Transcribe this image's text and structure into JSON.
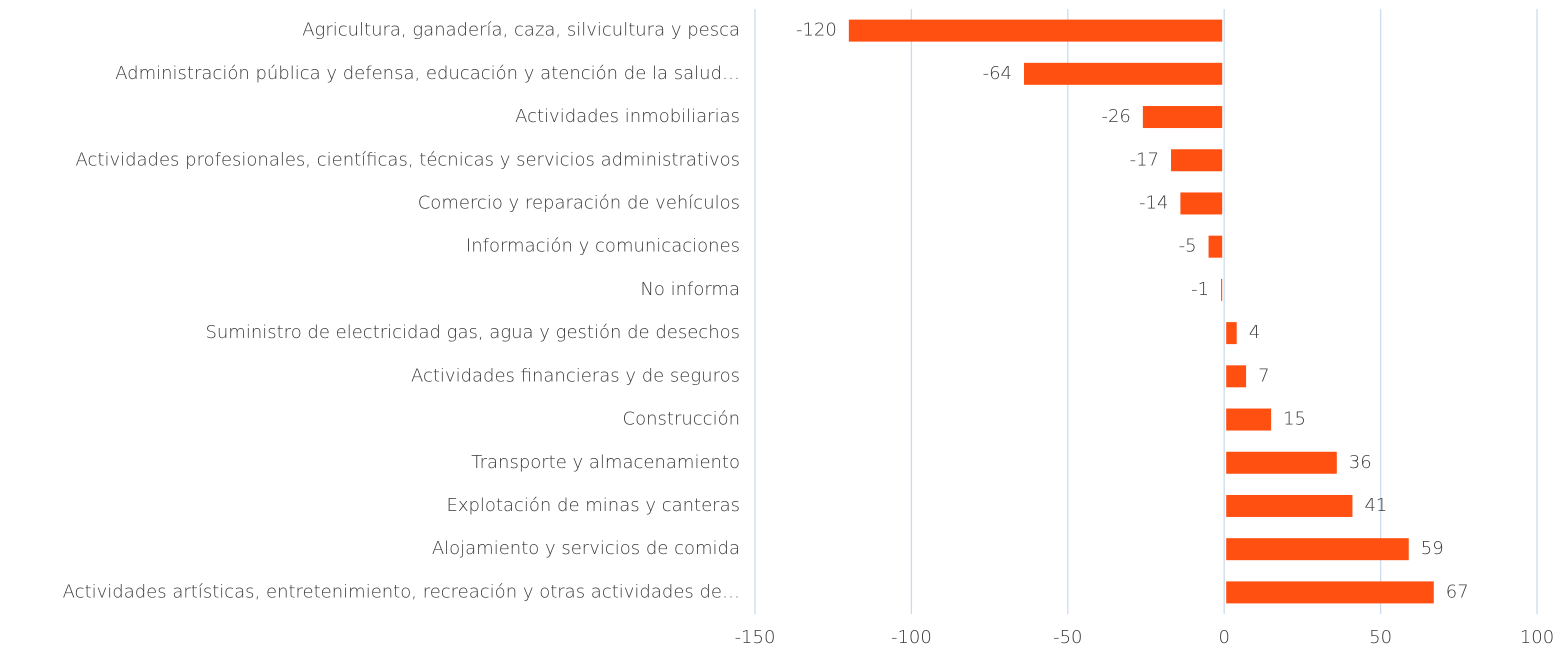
{
  "chart_data": {
    "type": "bar",
    "orientation": "horizontal",
    "categories": [
      "Agricultura, ganadería, caza, silvicultura y pesca",
      "Administración pública y defensa, educación y atención de la salud…",
      "Actividades inmobiliarias",
      "Actividades profesionales, científicas, técnicas y servicios administrativos",
      "Comercio y reparación de vehículos",
      "Información y comunicaciones",
      "No informa",
      "Suministro de electricidad gas, agua y gestión de desechos",
      "Actividades financieras y de seguros",
      "Construcción",
      "Transporte y almacenamiento",
      "Explotación de minas y canteras",
      "Alojamiento y servicios de comida",
      "Actividades artísticas, entretenimiento, recreación y otras actividades de…"
    ],
    "values": [
      -120,
      -64,
      -26,
      -17,
      -14,
      -5,
      -1,
      4,
      7,
      15,
      36,
      41,
      59,
      67
    ],
    "color": "#ff5011",
    "xlim": [
      -150,
      100
    ],
    "xticks": [
      -150,
      -100,
      -50,
      0,
      50,
      100
    ],
    "grid": true,
    "data_labels": true
  }
}
